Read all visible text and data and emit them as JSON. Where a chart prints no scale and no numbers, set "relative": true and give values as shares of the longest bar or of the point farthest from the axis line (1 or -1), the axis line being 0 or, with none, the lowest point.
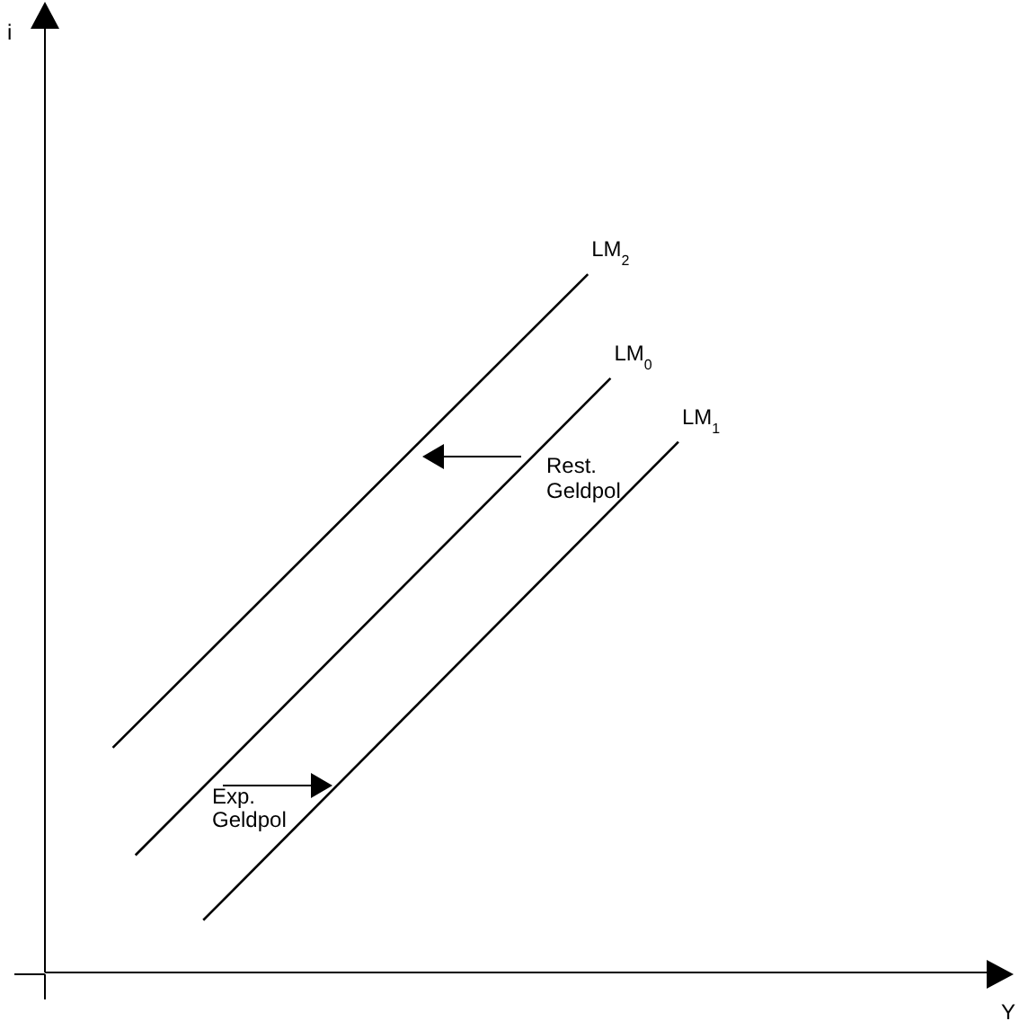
{
  "chart_data": {
    "type": "line",
    "relative": true,
    "xlabel": "Y",
    "legend": false,
    "categories": [
      null,
      null,
      null,
      null,
      null,
      null,
      null,
      null,
      null,
      null,
      null,
      null,
      null,
      null,
      null,
      null,
      null,
      null,
      null,
      null,
      null,
      null,
      null,
      null,
      null,
      null,
      null,
      null,
      null,
      null,
      null,
      null,
      null,
      null,
      null,
      null,
      null,
      null,
      null,
      null,
      null,
      null,
      null
    ],
    "series": [
      {
        "name": "LM$_{2}$",
        "color": "#000000",
        "values": [
          null,
          null,
          null,
          0.322,
          null,
          null,
          null,
          null,
          null,
          null,
          null,
          null,
          null,
          null,
          null,
          null,
          null,
          null,
          null,
          null,
          null,
          null,
          null,
          null,
          1,
          null,
          null,
          null,
          null,
          null,
          null,
          null,
          null,
          null,
          null,
          null,
          null,
          null,
          null,
          null,
          null,
          null,
          null
        ]
      },
      {
        "name": "LM$_{0}$",
        "color": "#000000",
        "values": [
          null,
          null,
          null,
          null,
          0.168,
          null,
          null,
          null,
          null,
          null,
          null,
          null,
          null,
          null,
          null,
          null,
          null,
          null,
          null,
          null,
          null,
          null,
          null,
          null,
          null,
          0.851,
          null,
          null,
          null,
          null,
          null,
          null,
          null,
          null,
          null,
          null,
          null,
          null,
          null,
          null,
          null,
          null,
          null
        ]
      },
      {
        "name": "LM$_{1}$",
        "color": "#000000",
        "values": [
          null,
          null,
          null,
          null,
          null,
          null,
          null,
          0.075,
          null,
          null,
          null,
          null,
          null,
          null,
          null,
          null,
          null,
          null,
          null,
          null,
          null,
          null,
          null,
          null,
          null,
          null,
          null,
          null,
          0.76,
          null,
          null,
          null,
          null,
          null,
          null,
          null,
          null,
          null,
          null,
          null,
          null,
          null,
          null
        ]
      }
    ],
    "annotations": [
      "i",
      "Rest. Geldpol",
      "Exp. Geldpol"
    ]
  }
}
